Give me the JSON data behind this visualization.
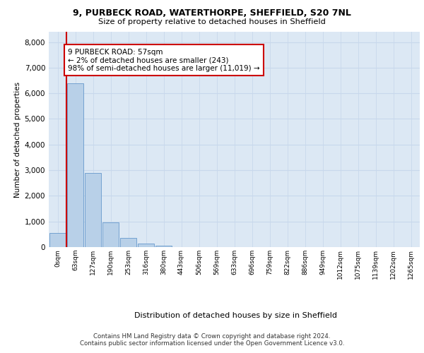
{
  "title_line1": "9, PURBECK ROAD, WATERTHORPE, SHEFFIELD, S20 7NL",
  "title_line2": "Size of property relative to detached houses in Sheffield",
  "xlabel": "Distribution of detached houses by size in Sheffield",
  "ylabel": "Number of detached properties",
  "bar_labels": [
    "0sqm",
    "63sqm",
    "127sqm",
    "190sqm",
    "253sqm",
    "316sqm",
    "380sqm",
    "443sqm",
    "506sqm",
    "569sqm",
    "633sqm",
    "696sqm",
    "759sqm",
    "822sqm",
    "886sqm",
    "949sqm",
    "1012sqm",
    "1075sqm",
    "1139sqm",
    "1202sqm",
    "1265sqm"
  ],
  "bar_values": [
    550,
    6400,
    2900,
    960,
    360,
    145,
    65,
    0,
    0,
    0,
    0,
    0,
    0,
    0,
    0,
    0,
    0,
    0,
    0,
    0,
    0
  ],
  "bar_color": "#b8d0e8",
  "bar_edge_color": "#6699cc",
  "highlight_color": "#cc0000",
  "annotation_text": "9 PURBECK ROAD: 57sqm\n← 2% of detached houses are smaller (243)\n98% of semi-detached houses are larger (11,019) →",
  "annotation_box_color": "#ffffff",
  "annotation_box_edge": "#cc0000",
  "ylim": [
    0,
    8400
  ],
  "yticks": [
    0,
    1000,
    2000,
    3000,
    4000,
    5000,
    6000,
    7000,
    8000
  ],
  "grid_color": "#c8d8ec",
  "background_color": "#dce8f4",
  "footer_line1": "Contains HM Land Registry data © Crown copyright and database right 2024.",
  "footer_line2": "Contains public sector information licensed under the Open Government Licence v3.0."
}
